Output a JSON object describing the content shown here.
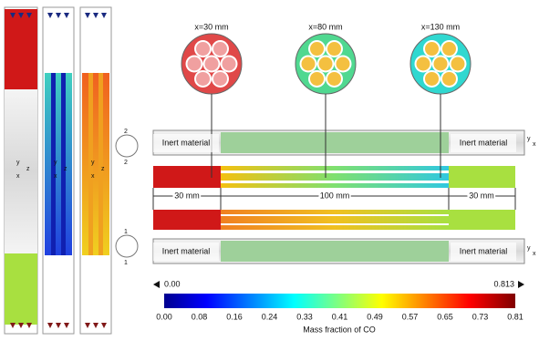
{
  "cross_sections": [
    "x=30 mm",
    "x=80 mm",
    "x=130 mm"
  ],
  "inert_labels": [
    "Inert material",
    "Inert material",
    "Inert material",
    "Inert material"
  ],
  "dimensions": [
    "30 mm",
    "100 mm",
    "30 mm"
  ],
  "range": {
    "min": "0.00",
    "max": "0.813"
  },
  "colorbar": {
    "ticks": [
      "0.00",
      "0.08",
      "0.16",
      "0.24",
      "0.33",
      "0.41",
      "0.49",
      "0.57",
      "0.65",
      "0.73",
      "0.81"
    ],
    "title": "Mass fraction of CO"
  },
  "axis_letters": {
    "column": [
      "y",
      "z",
      "x"
    ],
    "reactor": [
      "y",
      "x",
      "y",
      "x"
    ],
    "icon_top": [
      "2",
      "2"
    ],
    "icon_bottom": [
      "1",
      "1"
    ]
  }
}
